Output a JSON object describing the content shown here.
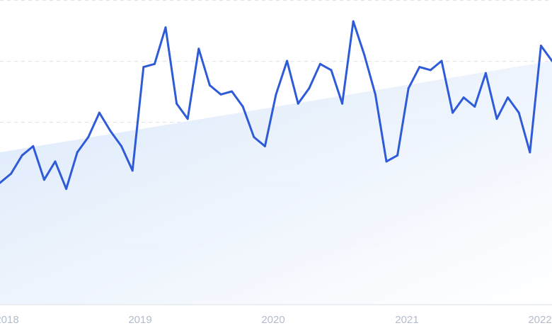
{
  "chart_data": {
    "type": "line",
    "title": "",
    "xlabel": "",
    "ylabel": "",
    "x_ticks": [
      "2018",
      "2019",
      "2020",
      "2021",
      "2022"
    ],
    "y_grid_lines": 5,
    "grid": true,
    "ylim": [
      0,
      100
    ],
    "series": [
      {
        "values": [
          40,
          43,
          49,
          52,
          41,
          47,
          38,
          50,
          55,
          63,
          57,
          52,
          44,
          78,
          79,
          91,
          66,
          61,
          84,
          72,
          69,
          70,
          65,
          55,
          52,
          69,
          80,
          66,
          71,
          79,
          77,
          66,
          93,
          82,
          69,
          47,
          49,
          71,
          78,
          77,
          80,
          63,
          68,
          65,
          76,
          61,
          68,
          63,
          50,
          85,
          80
        ]
      }
    ],
    "trend": {
      "start": 50,
      "end": 80
    },
    "colors": {
      "line": "#2f5bd8",
      "trend_fill_top": "#d9e7fa",
      "trend_fill_bottom": "#ffffff",
      "grid": "#dfe4ec",
      "tick": "#b3bccb"
    }
  }
}
